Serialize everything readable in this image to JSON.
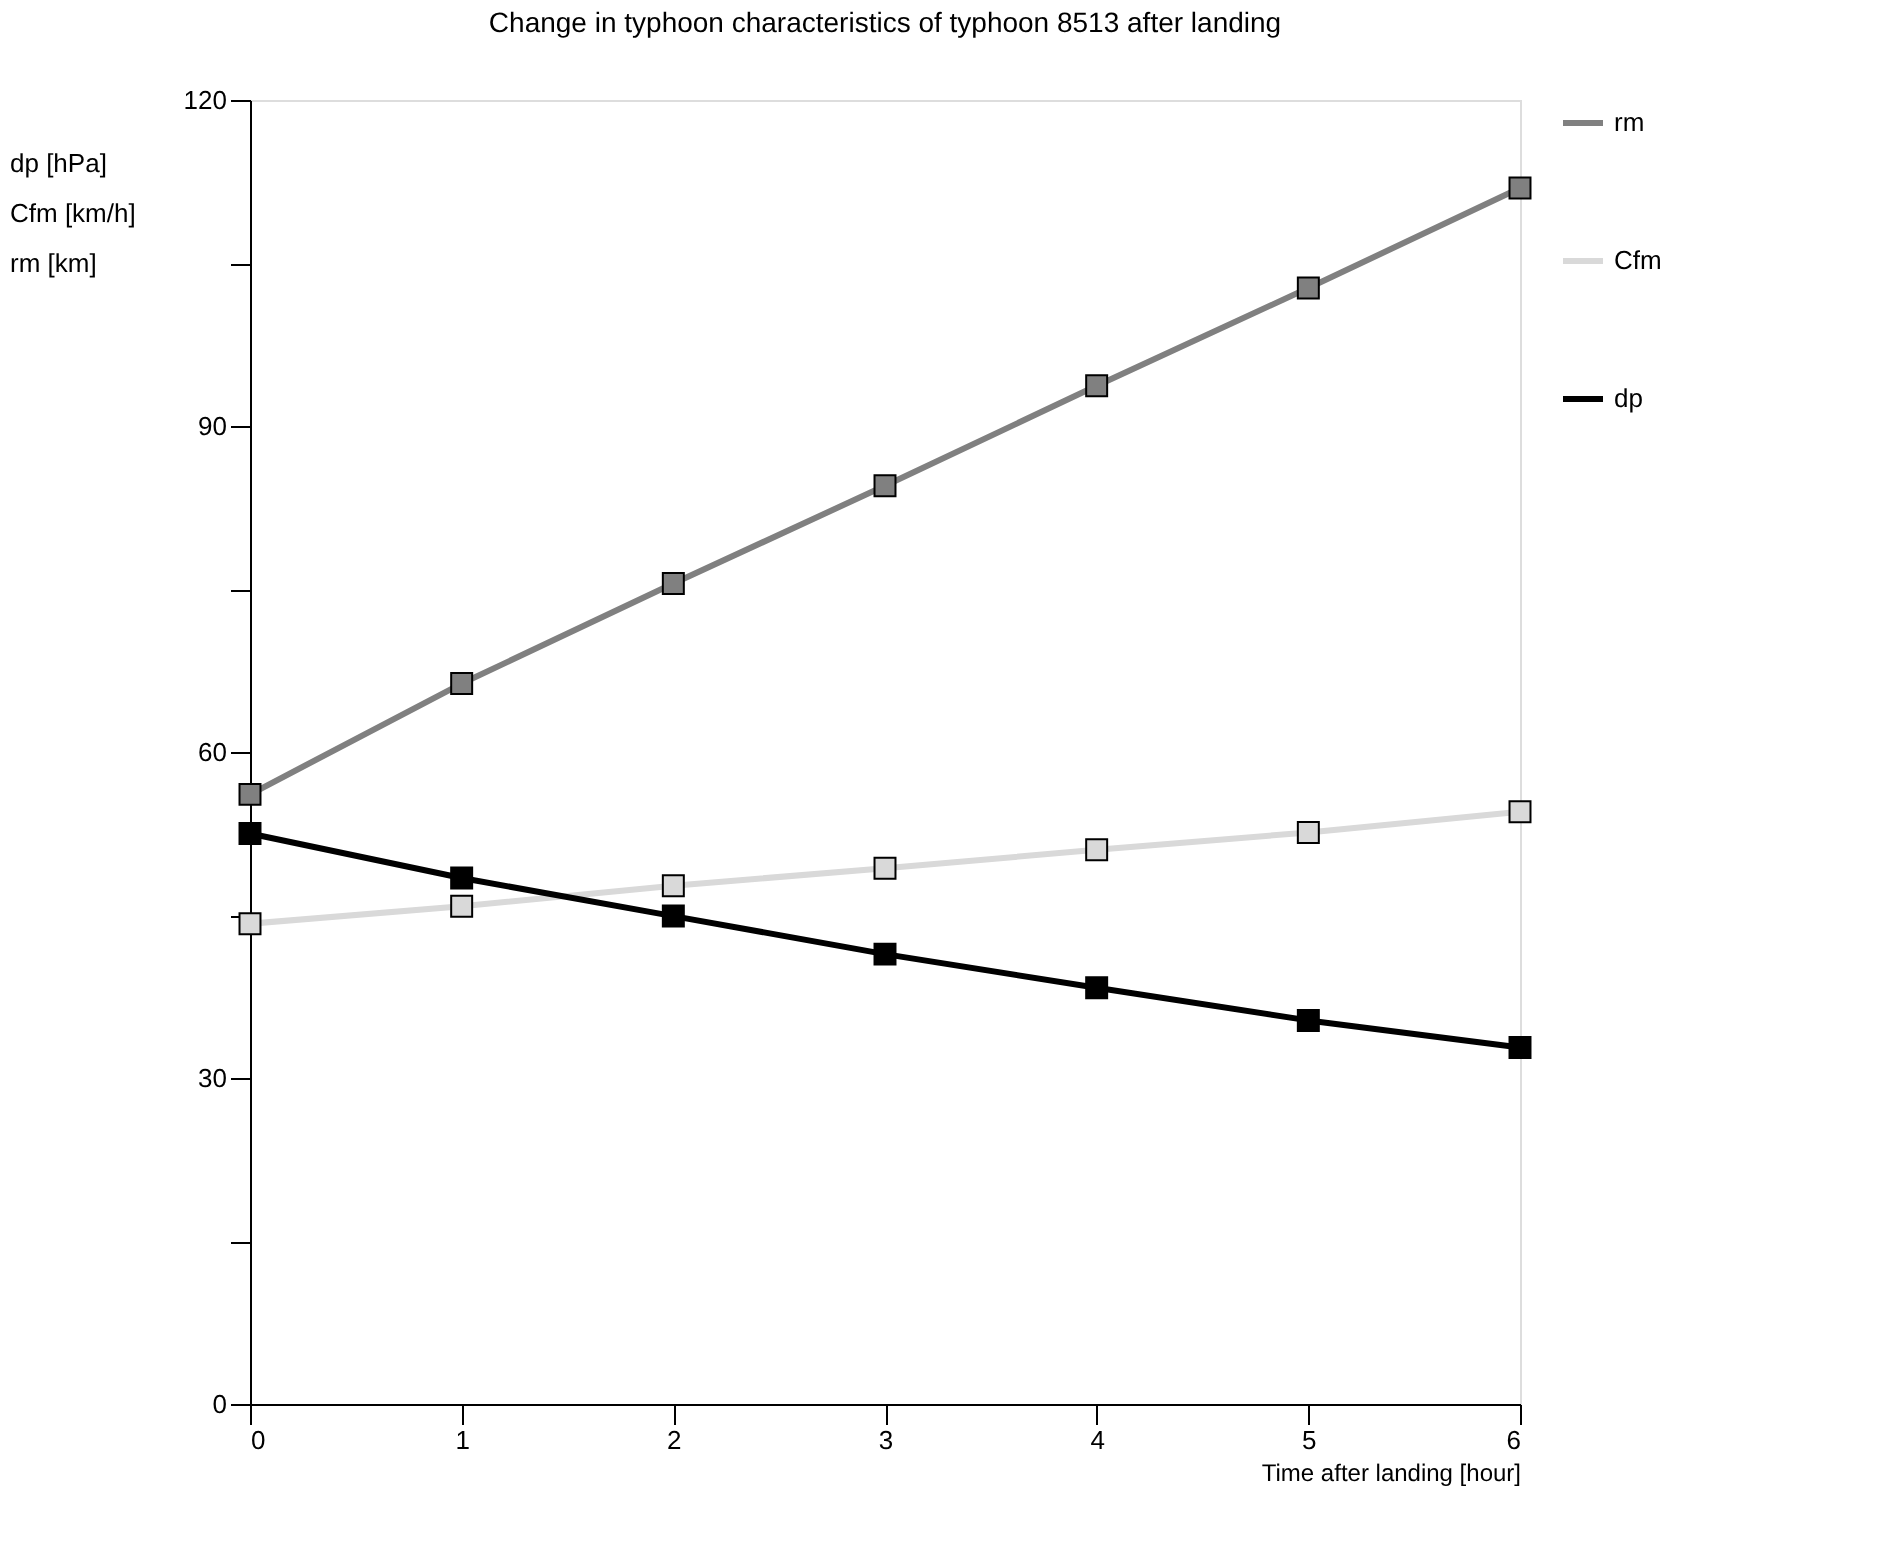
{
  "chart_data": {
    "type": "line",
    "title": "Change in typhoon characteristics of typhoon 8513 after landing",
    "xlabel": "Time after landing [hour]",
    "ylabel": "dp [hPa]\nCfm [km/h]\nrm [km]",
    "x": [
      0,
      1,
      2,
      3,
      4,
      5,
      6
    ],
    "series": [
      {
        "name": "rm",
        "color": "#808080",
        "values": [
          56.1,
          66.3,
          75.5,
          84.5,
          93.7,
          102.7,
          111.9
        ]
      },
      {
        "name": "Cfm",
        "color": "#d9d9d9",
        "values": [
          44.2,
          45.8,
          47.7,
          49.3,
          51.0,
          52.6,
          54.5
        ]
      },
      {
        "name": "dp",
        "color": "#000000",
        "values": [
          52.5,
          48.4,
          44.9,
          41.4,
          38.3,
          35.3,
          32.8
        ]
      }
    ],
    "xlim": [
      0,
      6
    ],
    "xticks": [
      0,
      1,
      2,
      3,
      4,
      5,
      6
    ],
    "ylim": [
      0,
      120
    ],
    "yticks": [
      0,
      {
        "value": 15,
        "label": null
      },
      30,
      {
        "value": 45,
        "label": null
      },
      60,
      {
        "value": 75,
        "label": null
      },
      90,
      {
        "value": 105,
        "label": null
      },
      120
    ],
    "grid": false,
    "legend": "right",
    "marker": "square",
    "line_style": "solid"
  }
}
